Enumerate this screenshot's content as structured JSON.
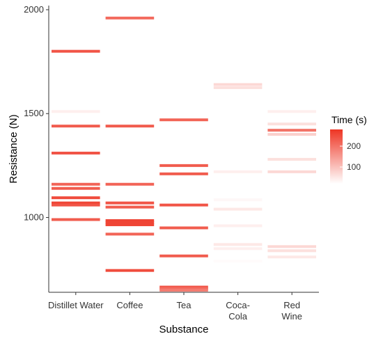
{
  "chart_data": {
    "type": "heatmap",
    "xlabel": "Substance",
    "ylabel": "Resistance (N)",
    "categories": [
      "Distillet Water",
      "Coffee",
      "Tea",
      "Coca-Cola",
      "Red Wine"
    ],
    "category_tick_lines": [
      [
        "Distillet Water"
      ],
      [
        "Coffee"
      ],
      [
        "Tea"
      ],
      [
        "Coca-",
        "Cola"
      ],
      [
        "Red",
        "Wine"
      ]
    ],
    "ylim": [
      640,
      2020
    ],
    "y_ticks": [
      1000,
      1500,
      2000
    ],
    "legend": {
      "title": "Time (s)",
      "ticks": [
        100,
        200
      ],
      "range": [
        20,
        280
      ],
      "colors": [
        "#ffffff",
        "#ee3524"
      ]
    },
    "series": [
      {
        "category": "Distillet Water",
        "points": [
          {
            "y": 1800,
            "t": 240
          },
          {
            "y": 1510,
            "t": 40
          },
          {
            "y": 1440,
            "t": 230
          },
          {
            "y": 1310,
            "t": 240
          },
          {
            "y": 1160,
            "t": 220
          },
          {
            "y": 1140,
            "t": 230
          },
          {
            "y": 1095,
            "t": 250
          },
          {
            "y": 1070,
            "t": 260
          },
          {
            "y": 1060,
            "t": 240
          },
          {
            "y": 990,
            "t": 230
          }
        ]
      },
      {
        "category": "Coffee",
        "points": [
          {
            "y": 1960,
            "t": 210
          },
          {
            "y": 1440,
            "t": 230
          },
          {
            "y": 1160,
            "t": 220
          },
          {
            "y": 1070,
            "t": 240
          },
          {
            "y": 1050,
            "t": 230
          },
          {
            "y": 985,
            "t": 260
          },
          {
            "y": 975,
            "t": 260
          },
          {
            "y": 965,
            "t": 260
          },
          {
            "y": 920,
            "t": 220
          },
          {
            "y": 745,
            "t": 250
          }
        ]
      },
      {
        "category": "Tea",
        "points": [
          {
            "y": 1470,
            "t": 220
          },
          {
            "y": 1250,
            "t": 230
          },
          {
            "y": 1210,
            "t": 230
          },
          {
            "y": 1060,
            "t": 240
          },
          {
            "y": 950,
            "t": 230
          },
          {
            "y": 815,
            "t": 230
          },
          {
            "y": 665,
            "t": 240
          },
          {
            "y": 658,
            "t": 210
          },
          {
            "y": 650,
            "t": 190
          }
        ]
      },
      {
        "category": "Coca-Cola",
        "points": [
          {
            "y": 1640,
            "t": 70
          },
          {
            "y": 1625,
            "t": 60
          },
          {
            "y": 1220,
            "t": 40
          },
          {
            "y": 1085,
            "t": 30
          },
          {
            "y": 1040,
            "t": 50
          },
          {
            "y": 960,
            "t": 40
          },
          {
            "y": 870,
            "t": 50
          },
          {
            "y": 850,
            "t": 40
          },
          {
            "y": 790,
            "t": 25
          }
        ]
      },
      {
        "category": "Red Wine",
        "points": [
          {
            "y": 1510,
            "t": 40
          },
          {
            "y": 1450,
            "t": 60
          },
          {
            "y": 1420,
            "t": 200
          },
          {
            "y": 1400,
            "t": 80
          },
          {
            "y": 1280,
            "t": 60
          },
          {
            "y": 1220,
            "t": 70
          },
          {
            "y": 1060,
            "t": 20
          },
          {
            "y": 860,
            "t": 70
          },
          {
            "y": 840,
            "t": 60
          },
          {
            "y": 810,
            "t": 50
          }
        ]
      }
    ]
  }
}
